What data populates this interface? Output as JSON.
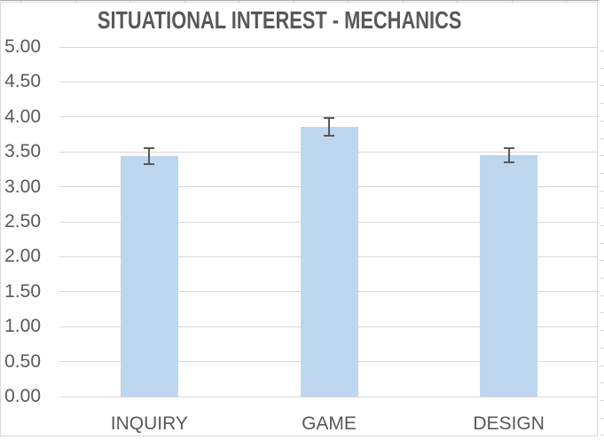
{
  "chart_data": {
    "type": "bar",
    "title": "SITUATIONAL INTEREST - MECHANICS",
    "categories": [
      "INQUIRY",
      "GAME",
      "DESIGN"
    ],
    "values": [
      3.44,
      3.86,
      3.45
    ],
    "error_bars": [
      0.11,
      0.13,
      0.1
    ],
    "ylim": [
      0,
      5
    ],
    "ytick_step": 0.5,
    "ytick_labels": [
      "0.00",
      "0.50",
      "1.00",
      "1.50",
      "2.00",
      "2.50",
      "3.00",
      "3.50",
      "4.00",
      "4.50",
      "5.00"
    ],
    "xlabel": "",
    "ylabel": "",
    "grid": "horizontal",
    "legend": "none",
    "colors": {
      "bar_fill": "#bdd7ee",
      "error_bar": "#595959",
      "gridline": "#d9d9d9",
      "text": "#595959",
      "chart_border": "#d9d9d9"
    }
  }
}
